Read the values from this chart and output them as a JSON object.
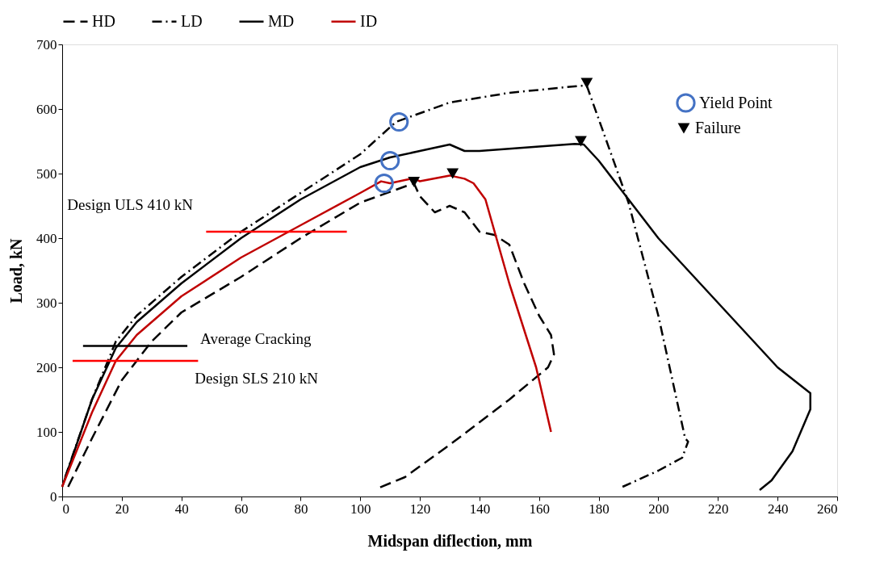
{
  "chart_data": {
    "type": "line",
    "xlabel": "Midspan diflection, mm",
    "ylabel": "Load, kN",
    "xlim": [
      0,
      260
    ],
    "ylim": [
      0,
      700
    ],
    "xticks": [
      0,
      20,
      40,
      60,
      80,
      100,
      120,
      140,
      160,
      180,
      200,
      220,
      240,
      260
    ],
    "yticks": [
      0,
      100,
      200,
      300,
      400,
      500,
      600,
      700
    ],
    "grid": false,
    "legend": "top",
    "series": [
      {
        "name": "HD",
        "color": "#000000",
        "line_style": "dashed",
        "x": [
          2,
          10,
          20,
          30,
          40,
          60,
          80,
          100,
          118,
          120,
          125,
          130,
          135,
          140,
          145,
          150,
          155,
          160,
          164,
          165,
          163,
          150,
          130,
          115,
          106
        ],
        "values": [
          15,
          90,
          180,
          240,
          285,
          340,
          400,
          455,
          485,
          465,
          440,
          450,
          440,
          410,
          405,
          390,
          330,
          280,
          250,
          220,
          200,
          150,
          80,
          30,
          13
        ]
      },
      {
        "name": "LD",
        "color": "#000000",
        "line_style": "dashdot",
        "x": [
          1,
          10,
          18,
          25,
          40,
          60,
          80,
          100,
          112,
          130,
          150,
          174,
          176,
          190,
          200,
          209,
          210,
          208,
          200,
          188
        ],
        "values": [
          30,
          150,
          240,
          280,
          340,
          410,
          470,
          530,
          580,
          610,
          625,
          636,
          636,
          455,
          280,
          90,
          85,
          60,
          40,
          15
        ]
      },
      {
        "name": "MD",
        "color": "#000000",
        "line_style": "solid",
        "x": [
          0,
          10,
          18,
          25,
          40,
          60,
          80,
          100,
          110,
          120,
          130,
          135,
          140,
          160,
          172,
          175,
          180,
          190,
          200,
          220,
          240,
          251,
          251,
          245,
          238,
          234
        ],
        "values": [
          15,
          150,
          230,
          270,
          330,
          400,
          460,
          510,
          525,
          535,
          545,
          535,
          535,
          542,
          546,
          545,
          520,
          460,
          400,
          300,
          200,
          160,
          135,
          70,
          25,
          10
        ]
      },
      {
        "name": "ID",
        "color": "#c00000",
        "line_style": "solid",
        "x": [
          0,
          10,
          18,
          25,
          40,
          60,
          80,
          100,
          107,
          110,
          115,
          118,
          120,
          130,
          135,
          138,
          142,
          150,
          159,
          164
        ],
        "values": [
          15,
          130,
          210,
          250,
          310,
          370,
          420,
          470,
          488,
          485,
          490,
          493,
          488,
          497,
          492,
          485,
          460,
          330,
          200,
          100
        ]
      },
      {
        "color": "#000000",
        "line_style": "solid",
        "x": [
          7,
          42
        ],
        "values": [
          233,
          233
        ]
      },
      {
        "color": "#ff0000",
        "line_style": "solid",
        "x": [
          3.5,
          45.6
        ],
        "values": [
          210,
          210
        ]
      },
      {
        "color": "#ff0000",
        "line_style": "solid",
        "x": [
          48.3,
          95.5
        ],
        "values": [
          410,
          410
        ]
      },
      {
        "name": "Yield Point",
        "type": "scatter",
        "marker": "circle",
        "color": "#4472c4",
        "x": [
          113,
          110,
          108
        ],
        "values": [
          580,
          520,
          485
        ]
      },
      {
        "name": "Failure",
        "type": "scatter",
        "marker": "triangle",
        "color": "#000000",
        "x": [
          176,
          174,
          131,
          118
        ],
        "values": [
          640,
          550,
          500,
          487
        ]
      }
    ],
    "annotations": [
      {
        "text": "Design ULS 410 kN",
        "x": 48.3,
        "y": 410
      },
      {
        "text": "Average Cracking",
        "x": 42,
        "y": 233
      },
      {
        "text": "Design SLS 210 kN",
        "x": 45.6,
        "y": 210
      }
    ]
  }
}
